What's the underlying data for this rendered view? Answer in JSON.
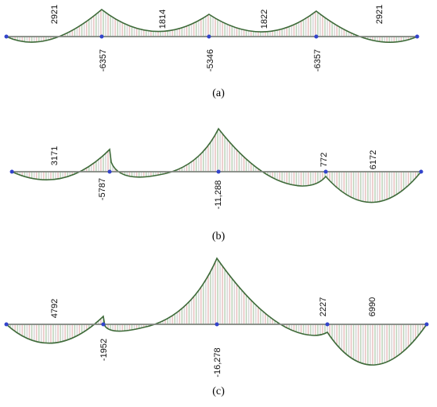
{
  "panels": [
    {
      "caption": "(a)",
      "labels": [
        "2921",
        "1814",
        "1822",
        "2921",
        "-6357",
        "-5346",
        "-6357"
      ]
    },
    {
      "caption": "(b)",
      "labels": [
        "3171",
        "-5787",
        "-11,288",
        "772",
        "6172"
      ]
    },
    {
      "caption": "(c)",
      "labels": [
        "4792",
        "-1952",
        "-16,278",
        "2227",
        "6990"
      ]
    }
  ]
}
